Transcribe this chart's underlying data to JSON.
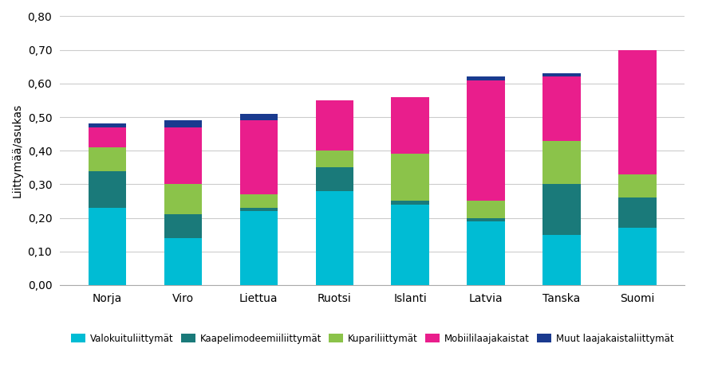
{
  "countries": [
    "Norja",
    "Viro",
    "Liettua",
    "Ruotsi",
    "Islanti",
    "Latvia",
    "Tanska",
    "Suomi"
  ],
  "valokuitu": [
    0.23,
    0.14,
    0.22,
    0.28,
    0.24,
    0.19,
    0.15,
    0.17
  ],
  "kaapelimodeemi": [
    0.11,
    0.07,
    0.01,
    0.07,
    0.01,
    0.01,
    0.15,
    0.09
  ],
  "kupari": [
    0.07,
    0.09,
    0.04,
    0.05,
    0.14,
    0.05,
    0.13,
    0.07
  ],
  "mobiili": [
    0.06,
    0.17,
    0.22,
    0.15,
    0.17,
    0.36,
    0.19,
    0.37
  ],
  "muut": [
    0.01,
    0.02,
    0.02,
    0.0,
    0.0,
    0.01,
    0.01,
    0.0
  ],
  "colors": {
    "valokuitu": "#00BCD4",
    "kaapelimodeemi": "#1A7A7A",
    "kupari": "#8BC34A",
    "mobiili": "#E91E8C",
    "muut": "#1A3A8F"
  },
  "legend_labels": [
    "Valokuituliittymät",
    "Kaapelimodeemiiliittymät",
    "Kupariliittymät",
    "Mobiililaajakaistat",
    "Muut laajakaistaliittymät"
  ],
  "ylabel": "Liittymää/asukas",
  "ylim": [
    0.0,
    0.8
  ],
  "yticks": [
    0.0,
    0.1,
    0.2,
    0.3,
    0.4,
    0.5,
    0.6,
    0.7,
    0.8
  ],
  "background_color": "#FFFFFF",
  "bar_width": 0.5
}
